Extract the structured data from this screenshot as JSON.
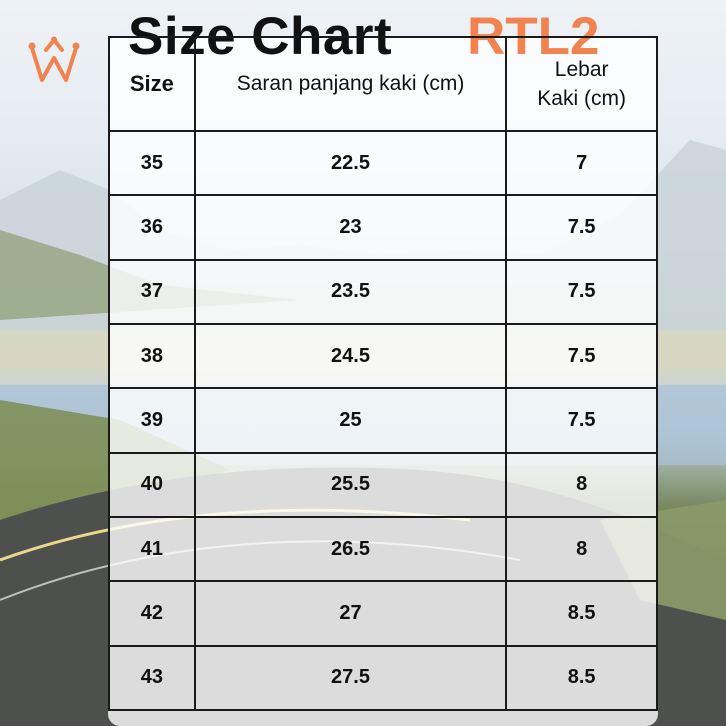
{
  "header": {
    "title": "Size Chart",
    "model": "RTL2"
  },
  "table": {
    "columns": [
      "Size",
      "Saran panjang kaki (cm)",
      "Lebar Kaki (cm)"
    ],
    "rows": [
      [
        "35",
        "22.5",
        "7"
      ],
      [
        "36",
        "23",
        "7.5"
      ],
      [
        "37",
        "23.5",
        "7.5"
      ],
      [
        "38",
        "24.5",
        "7.5"
      ],
      [
        "39",
        "25",
        "7.5"
      ],
      [
        "40",
        "25.5",
        "8"
      ],
      [
        "41",
        "26.5",
        "8"
      ],
      [
        "42",
        "27",
        "8.5"
      ],
      [
        "43",
        "27.5",
        "8.5"
      ]
    ]
  },
  "colors": {
    "accent": "#f0834f",
    "text": "#111111"
  },
  "icons": {
    "logo": "crown-w-logo"
  }
}
